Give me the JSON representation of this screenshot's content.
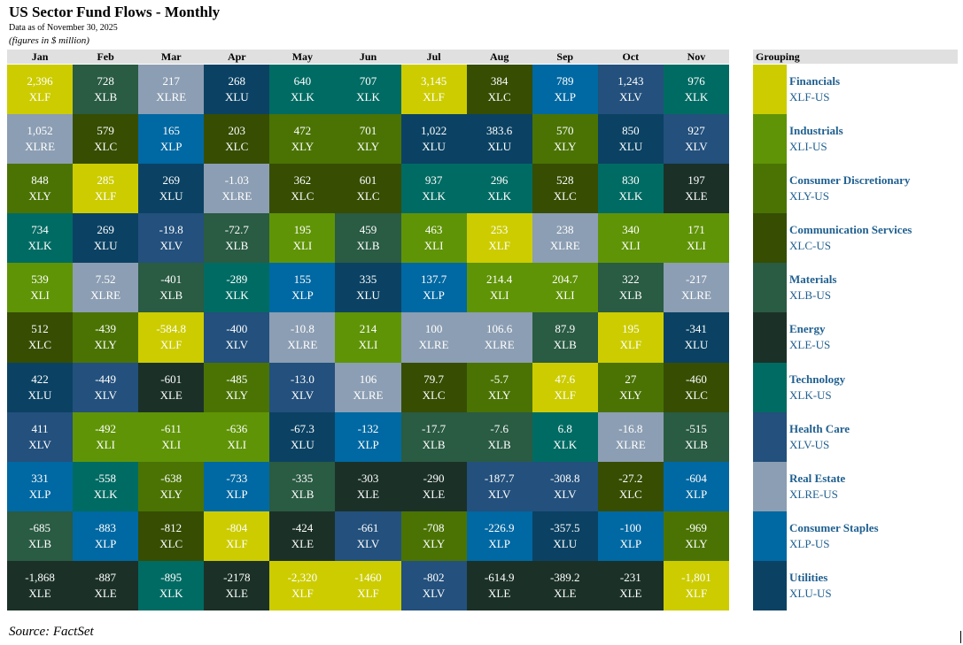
{
  "header": {
    "title": "US Sector Fund Flows - Monthly",
    "date": "Data as of November 30, 2025",
    "units": "(figures in $ million)"
  },
  "table": {
    "columns": [
      {
        "month": "Jan",
        "cells": [
          [
            "2,396",
            "XLF"
          ],
          [
            "1,052",
            "XLRE"
          ],
          [
            "848",
            "XLY"
          ],
          [
            "734",
            "XLK"
          ],
          [
            "539",
            "XLI"
          ],
          [
            "512",
            "XLC"
          ],
          [
            "422",
            "XLU"
          ],
          [
            "411",
            "XLV"
          ],
          [
            "331",
            "XLP"
          ],
          [
            "-685",
            "XLB"
          ],
          [
            "-1,868",
            "XLE"
          ]
        ]
      },
      {
        "month": "Feb",
        "cells": [
          [
            "728",
            "XLB"
          ],
          [
            "579",
            "XLC"
          ],
          [
            "285",
            "XLF"
          ],
          [
            "269",
            "XLU"
          ],
          [
            "7.52",
            "XLRE"
          ],
          [
            "-439",
            "XLY"
          ],
          [
            "-449",
            "XLV"
          ],
          [
            "-492",
            "XLI"
          ],
          [
            "-558",
            "XLK"
          ],
          [
            "-883",
            "XLP"
          ],
          [
            "-887",
            "XLE"
          ]
        ]
      },
      {
        "month": "Mar",
        "cells": [
          [
            "217",
            "XLRE"
          ],
          [
            "165",
            "XLP"
          ],
          [
            "269",
            "XLU"
          ],
          [
            "-19.8",
            "XLV"
          ],
          [
            "-401",
            "XLB"
          ],
          [
            "-584.8",
            "XLF"
          ],
          [
            "-601",
            "XLE"
          ],
          [
            "-611",
            "XLI"
          ],
          [
            "-638",
            "XLY"
          ],
          [
            "-812",
            "XLC"
          ],
          [
            "-895",
            "XLK"
          ]
        ]
      },
      {
        "month": "Apr",
        "cells": [
          [
            "268",
            "XLU"
          ],
          [
            "203",
            "XLC"
          ],
          [
            "-1.03",
            "XLRE"
          ],
          [
            "-72.7",
            "XLB"
          ],
          [
            "-289",
            "XLK"
          ],
          [
            "-400",
            "XLV"
          ],
          [
            "-485",
            "XLY"
          ],
          [
            "-636",
            "XLI"
          ],
          [
            "-733",
            "XLP"
          ],
          [
            "-804",
            "XLF"
          ],
          [
            "-2178",
            "XLE"
          ]
        ]
      },
      {
        "month": "May",
        "cells": [
          [
            "640",
            "XLK"
          ],
          [
            "472",
            "XLY"
          ],
          [
            "362",
            "XLC"
          ],
          [
            "195",
            "XLI"
          ],
          [
            "155",
            "XLP"
          ],
          [
            "-10.8",
            "XLRE"
          ],
          [
            "-13.0",
            "XLV"
          ],
          [
            "-67.3",
            "XLU"
          ],
          [
            "-335",
            "XLB"
          ],
          [
            "-424",
            "XLE"
          ],
          [
            "-2,320",
            "XLF"
          ]
        ]
      },
      {
        "month": "Jun",
        "cells": [
          [
            "707",
            "XLK"
          ],
          [
            "701",
            "XLY"
          ],
          [
            "601",
            "XLC"
          ],
          [
            "459",
            "XLB"
          ],
          [
            "335",
            "XLU"
          ],
          [
            "214",
            "XLI"
          ],
          [
            "106",
            "XLRE"
          ],
          [
            "-132",
            "XLP"
          ],
          [
            "-303",
            "XLE"
          ],
          [
            "-661",
            "XLV"
          ],
          [
            "-1460",
            "XLF"
          ]
        ]
      },
      {
        "month": "Jul",
        "cells": [
          [
            "3,145",
            "XLF"
          ],
          [
            "1,022",
            "XLU"
          ],
          [
            "937",
            "XLK"
          ],
          [
            "463",
            "XLI"
          ],
          [
            "137.7",
            "XLP"
          ],
          [
            "100",
            "XLRE"
          ],
          [
            "79.7",
            "XLC"
          ],
          [
            "-17.7",
            "XLB"
          ],
          [
            "-290",
            "XLE"
          ],
          [
            "-708",
            "XLY"
          ],
          [
            "-802",
            "XLV"
          ]
        ]
      },
      {
        "month": "Aug",
        "cells": [
          [
            "384",
            "XLC"
          ],
          [
            "383.6",
            "XLU"
          ],
          [
            "296",
            "XLK"
          ],
          [
            "253",
            "XLF"
          ],
          [
            "214.4",
            "XLI"
          ],
          [
            "106.6",
            "XLRE"
          ],
          [
            "-5.7",
            "XLY"
          ],
          [
            "-7.6",
            "XLB"
          ],
          [
            "-187.7",
            "XLV"
          ],
          [
            "-226.9",
            "XLP"
          ],
          [
            "-614.9",
            "XLE"
          ]
        ]
      },
      {
        "month": "Sep",
        "cells": [
          [
            "789",
            "XLP"
          ],
          [
            "570",
            "XLY"
          ],
          [
            "528",
            "XLC"
          ],
          [
            "238",
            "XLRE"
          ],
          [
            "204.7",
            "XLI"
          ],
          [
            "87.9",
            "XLB"
          ],
          [
            "47.6",
            "XLF"
          ],
          [
            "6.8",
            "XLK"
          ],
          [
            "-308.8",
            "XLV"
          ],
          [
            "-357.5",
            "XLU"
          ],
          [
            "-389.2",
            "XLE"
          ]
        ]
      },
      {
        "month": "Oct",
        "cells": [
          [
            "1,243",
            "XLV"
          ],
          [
            "850",
            "XLU"
          ],
          [
            "830",
            "XLK"
          ],
          [
            "340",
            "XLI"
          ],
          [
            "322",
            "XLB"
          ],
          [
            "195",
            "XLF"
          ],
          [
            "27",
            "XLY"
          ],
          [
            "-16.8",
            "XLRE"
          ],
          [
            "-27.2",
            "XLC"
          ],
          [
            "-100",
            "XLP"
          ],
          [
            "-231",
            "XLE"
          ]
        ]
      },
      {
        "month": "Nov",
        "cells": [
          [
            "976",
            "XLK"
          ],
          [
            "927",
            "XLV"
          ],
          [
            "197",
            "XLE"
          ],
          [
            "171",
            "XLI"
          ],
          [
            "-217",
            "XLRE"
          ],
          [
            "-341",
            "XLU"
          ],
          [
            "-460",
            "XLC"
          ],
          [
            "-515",
            "XLB"
          ],
          [
            "-604",
            "XLP"
          ],
          [
            "-969",
            "XLY"
          ],
          [
            "-1,801",
            "XLF"
          ]
        ]
      }
    ]
  },
  "grouping": {
    "title": "Grouping",
    "items": [
      {
        "name": "Financials",
        "ticker": "XLF-US",
        "color": "#cccc00"
      },
      {
        "name": "Industrials",
        "ticker": "XLI-US",
        "color": "#5f9406"
      },
      {
        "name": "Consumer Discretionary",
        "ticker": "XLY-US",
        "color": "#4a7304"
      },
      {
        "name": "Communication Services",
        "ticker": "XLC-US",
        "color": "#364d02"
      },
      {
        "name": "Materials",
        "ticker": "XLB-US",
        "color": "#2a5b43"
      },
      {
        "name": "Energy",
        "ticker": "XLE-US",
        "color": "#1b3128"
      },
      {
        "name": "Technology",
        "ticker": "XLK-US",
        "color": "#006b63"
      },
      {
        "name": "Health Care",
        "ticker": "XLV-US",
        "color": "#23507c"
      },
      {
        "name": "Real Estate",
        "ticker": "XLRE-US",
        "color": "#8c9eb3"
      },
      {
        "name": "Consumer Staples",
        "ticker": "XLP-US",
        "color": "#0068a2"
      },
      {
        "name": "Utilities",
        "ticker": "XLU-US",
        "color": "#0b4263"
      }
    ]
  },
  "footer": {
    "source": "Source: FactSet"
  }
}
